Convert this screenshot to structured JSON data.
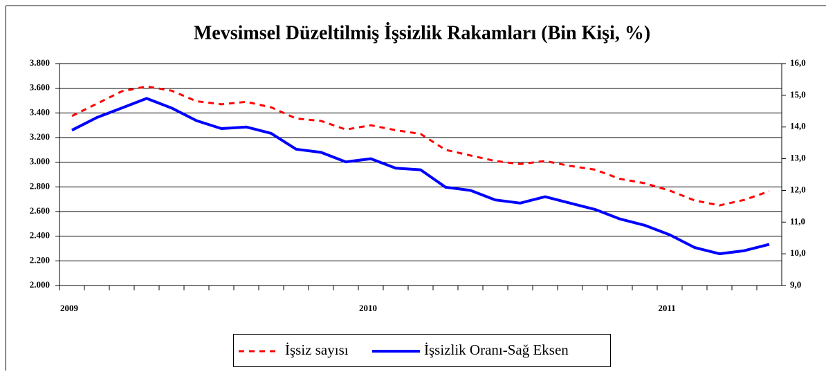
{
  "chart_data": {
    "type": "line",
    "title": "Mevsimsel Düzeltilmiş İşsizlik Rakamları (Bin Kişi, %)",
    "categories": [
      "2009",
      null,
      null,
      null,
      null,
      null,
      null,
      null,
      null,
      null,
      null,
      null,
      "2010",
      null,
      null,
      null,
      null,
      null,
      null,
      null,
      null,
      null,
      null,
      null,
      "2011",
      null,
      null,
      null,
      null
    ],
    "series": [
      {
        "name": "İşsiz sayısı",
        "color": "#ff0000",
        "dashed": true,
        "values": [
          3375,
          3475,
          3575,
          3615,
          3580,
          3495,
          3470,
          3490,
          3445,
          3355,
          3335,
          3265,
          3300,
          3260,
          3230,
          3100,
          3055,
          3010,
          2985,
          3010,
          2970,
          2940,
          2865,
          2830,
          2770,
          2690,
          2650,
          2695,
          2765
        ]
      },
      {
        "name": "İşsizlik Oranı-Sağ Eksen",
        "color": "#0000ff",
        "axis": "y2",
        "values": [
          13.9,
          14.3,
          14.6,
          14.9,
          14.6,
          14.2,
          13.95,
          14.0,
          13.8,
          13.3,
          13.2,
          12.9,
          13.0,
          12.7,
          12.65,
          12.1,
          12.0,
          11.7,
          11.6,
          11.8,
          11.6,
          11.4,
          11.1,
          10.9,
          10.6,
          10.2,
          10.0,
          10.1,
          10.3
        ]
      }
    ],
    "ylim": [
      2000,
      3800
    ],
    "yticks": [
      {
        "value": 2000,
        "label": "2.000"
      },
      {
        "value": 2200,
        "label": "2.200"
      },
      {
        "value": 2400,
        "label": "2.400"
      },
      {
        "value": 2600,
        "label": "2.600"
      },
      {
        "value": 2800,
        "label": "2.800"
      },
      {
        "value": 3000,
        "label": "3.000"
      },
      {
        "value": 3200,
        "label": "3.200"
      },
      {
        "value": 3400,
        "label": "3.400"
      },
      {
        "value": 3600,
        "label": "3.600"
      },
      {
        "value": 3800,
        "label": "3.800"
      }
    ],
    "y2lim": [
      9,
      16
    ],
    "y2ticks": [
      {
        "value": 9,
        "label": "9,0"
      },
      {
        "value": 10,
        "label": "10,0"
      },
      {
        "value": 11,
        "label": "11,0"
      },
      {
        "value": 12,
        "label": "12,0"
      },
      {
        "value": 13,
        "label": "13,0"
      },
      {
        "value": 14,
        "label": "14,0"
      },
      {
        "value": 15,
        "label": "15,0"
      },
      {
        "value": 16,
        "label": "16,0"
      }
    ],
    "grid": true,
    "legend": "bottom"
  }
}
